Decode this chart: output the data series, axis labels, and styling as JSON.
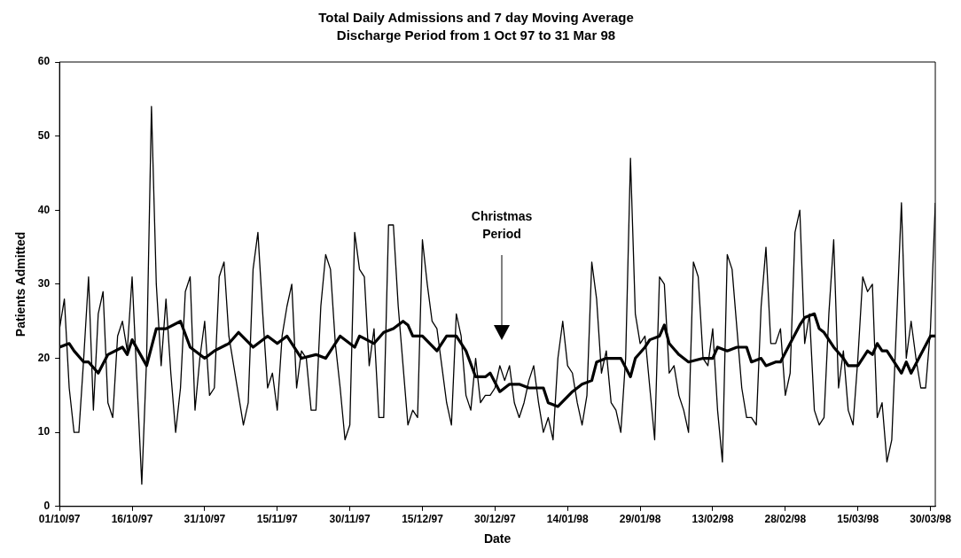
{
  "chart_data": {
    "type": "line",
    "title": "Total Daily Admissions and 7 day Moving Average",
    "subtitle": "Discharge Period from 1 Oct 97 to 31 Mar 98",
    "xlabel": "Date",
    "ylabel": "Patients Admitted",
    "x": [
      "1997-10-01",
      "1997-10-02",
      "1997-10-03",
      "1997-10-04",
      "1997-10-05",
      "1997-10-06",
      "1997-10-07",
      "1997-10-08",
      "1997-10-09",
      "1997-10-10",
      "1997-10-11",
      "1997-10-12",
      "1997-10-13",
      "1997-10-14",
      "1997-10-15",
      "1997-10-16",
      "1997-10-17",
      "1997-10-18",
      "1997-10-19",
      "1997-10-20",
      "1997-10-21",
      "1997-10-22",
      "1997-10-23",
      "1997-10-24",
      "1997-10-25",
      "1997-10-26",
      "1997-10-27",
      "1997-10-28",
      "1997-10-29",
      "1997-10-30",
      "1997-10-31",
      "1997-11-01",
      "1997-11-02",
      "1997-11-03",
      "1997-11-04",
      "1997-11-05",
      "1997-11-06",
      "1997-11-07",
      "1997-11-08",
      "1997-11-09",
      "1997-11-10",
      "1997-11-11",
      "1997-11-12",
      "1997-11-13",
      "1997-11-14",
      "1997-11-15",
      "1997-11-16",
      "1997-11-17",
      "1997-11-18",
      "1997-11-19",
      "1997-11-20",
      "1997-11-21",
      "1997-11-22",
      "1997-11-23",
      "1997-11-24",
      "1997-11-25",
      "1997-11-26",
      "1997-11-27",
      "1997-11-28",
      "1997-11-29",
      "1997-11-30",
      "1997-12-01",
      "1997-12-02",
      "1997-12-03",
      "1997-12-04",
      "1997-12-05",
      "1997-12-06",
      "1997-12-07",
      "1997-12-08",
      "1997-12-09",
      "1997-12-10",
      "1997-12-11",
      "1997-12-12",
      "1997-12-13",
      "1997-12-14",
      "1997-12-15",
      "1997-12-16",
      "1997-12-17",
      "1997-12-18",
      "1997-12-19",
      "1997-12-20",
      "1997-12-21",
      "1997-12-22",
      "1997-12-23",
      "1997-12-24",
      "1997-12-25",
      "1997-12-26",
      "1997-12-27",
      "1997-12-28",
      "1997-12-29",
      "1997-12-30",
      "1997-12-31",
      "1998-01-01",
      "1998-01-02",
      "1998-01-03",
      "1998-01-04",
      "1998-01-05",
      "1998-01-06",
      "1998-01-07",
      "1998-01-08",
      "1998-01-09",
      "1998-01-10",
      "1998-01-11",
      "1998-01-12",
      "1998-01-13",
      "1998-01-14",
      "1998-01-15",
      "1998-01-16",
      "1998-01-17",
      "1998-01-18",
      "1998-01-19",
      "1998-01-20",
      "1998-01-21",
      "1998-01-22",
      "1998-01-23",
      "1998-01-24",
      "1998-01-25",
      "1998-01-26",
      "1998-01-27",
      "1998-01-28",
      "1998-01-29",
      "1998-01-30",
      "1998-01-31",
      "1998-02-01",
      "1998-02-02",
      "1998-02-03",
      "1998-02-04",
      "1998-02-05",
      "1998-02-06",
      "1998-02-07",
      "1998-02-08",
      "1998-02-09",
      "1998-02-10",
      "1998-02-11",
      "1998-02-12",
      "1998-02-13",
      "1998-02-14",
      "1998-02-15",
      "1998-02-16",
      "1998-02-17",
      "1998-02-18",
      "1998-02-19",
      "1998-02-20",
      "1998-02-21",
      "1998-02-22",
      "1998-02-23",
      "1998-02-24",
      "1998-02-25",
      "1998-02-26",
      "1998-02-27",
      "1998-02-28",
      "1998-03-01",
      "1998-03-02",
      "1998-03-03",
      "1998-03-04",
      "1998-03-05",
      "1998-03-06",
      "1998-03-07",
      "1998-03-08",
      "1998-03-09",
      "1998-03-10",
      "1998-03-11",
      "1998-03-12",
      "1998-03-13",
      "1998-03-14",
      "1998-03-15",
      "1998-03-16",
      "1998-03-17",
      "1998-03-18",
      "1998-03-19",
      "1998-03-20",
      "1998-03-21",
      "1998-03-22",
      "1998-03-23",
      "1998-03-24",
      "1998-03-25",
      "1998-03-26",
      "1998-03-27",
      "1998-03-28",
      "1998-03-29",
      "1998-03-30",
      "1998-03-31"
    ],
    "series": [
      {
        "color": "#000000",
        "values": [
          24,
          28,
          16,
          10,
          10,
          20,
          31,
          13,
          26,
          29,
          14,
          12,
          23,
          25,
          21,
          31,
          17,
          3,
          20,
          54,
          30,
          19,
          28,
          18,
          10,
          16,
          29,
          31,
          13,
          20,
          25,
          15,
          16,
          31,
          33,
          23,
          19,
          15,
          11,
          14,
          32,
          37,
          26,
          16,
          18,
          13,
          23,
          27,
          30,
          16,
          21,
          20,
          13,
          13,
          27,
          34,
          32,
          22,
          16,
          9,
          11,
          37,
          32,
          31,
          19,
          24,
          12,
          12,
          38,
          38,
          27,
          19,
          11,
          13,
          12,
          36,
          30,
          25,
          24,
          19,
          14,
          11,
          26,
          23,
          15,
          13,
          20,
          14,
          15,
          15,
          16,
          19,
          17,
          19,
          14,
          12,
          14,
          17,
          19,
          14,
          10,
          12,
          9,
          20,
          25,
          19,
          18,
          14,
          11,
          15,
          33,
          28,
          18,
          21,
          14,
          13,
          10,
          20,
          47,
          26,
          22,
          23,
          16,
          9,
          31,
          30,
          18,
          19,
          15,
          13,
          10,
          33,
          31,
          20,
          19,
          24,
          13,
          6,
          34,
          32,
          24,
          16,
          12,
          12,
          11,
          27,
          35,
          22,
          22,
          24,
          15,
          18,
          37,
          40,
          22,
          26,
          13,
          11,
          12,
          26,
          36,
          16,
          21,
          13,
          11,
          20,
          31,
          29,
          30,
          12,
          14,
          6,
          9,
          25,
          41,
          20,
          25,
          20,
          16,
          16,
          24,
          41
        ]
      },
      {
        "color": "#000000",
        "x": [
          "1997-10-01",
          "1997-10-03",
          "1997-10-04",
          "1997-10-06",
          "1997-10-07",
          "1997-10-09",
          "1997-10-11",
          "1997-10-14",
          "1997-10-15",
          "1997-10-16",
          "1997-10-19",
          "1997-10-21",
          "1997-10-23",
          "1997-10-26",
          "1997-10-28",
          "1997-10-31",
          "1997-11-02",
          "1997-11-05",
          "1997-11-07",
          "1997-11-10",
          "1997-11-13",
          "1997-11-15",
          "1997-11-17",
          "1997-11-20",
          "1997-11-23",
          "1997-11-25",
          "1997-11-28",
          "1997-12-01",
          "1997-12-02",
          "1997-12-05",
          "1997-12-07",
          "1997-12-09",
          "1997-12-11",
          "1997-12-12",
          "1997-12-13",
          "1997-12-15",
          "1997-12-18",
          "1997-12-20",
          "1997-12-22",
          "1997-12-24",
          "1997-12-26",
          "1997-12-28",
          "1997-12-29",
          "1997-12-31",
          "1998-01-02",
          "1998-01-04",
          "1998-01-06",
          "1998-01-09",
          "1998-01-10",
          "1998-01-12",
          "1998-01-15",
          "1998-01-17",
          "1998-01-19",
          "1998-01-20",
          "1998-01-22",
          "1998-01-25",
          "1998-01-27",
          "1998-01-28",
          "1998-01-30",
          "1998-01-31",
          "1998-02-02",
          "1998-02-03",
          "1998-02-04",
          "1998-02-06",
          "1998-02-08",
          "1998-02-11",
          "1998-02-13",
          "1998-02-14",
          "1998-02-16",
          "1998-02-18",
          "1998-02-20",
          "1998-02-21",
          "1998-02-23",
          "1998-02-24",
          "1998-02-26",
          "1998-02-27",
          "1998-03-01",
          "1998-03-03",
          "1998-03-04",
          "1998-03-06",
          "1998-03-07",
          "1998-03-08",
          "1998-03-10",
          "1998-03-12",
          "1998-03-13",
          "1998-03-15",
          "1998-03-17",
          "1998-03-18",
          "1998-03-19",
          "1998-03-20",
          "1998-03-21",
          "1998-03-23",
          "1998-03-24",
          "1998-03-25",
          "1998-03-26",
          "1998-03-28",
          "1998-03-30",
          "1998-03-31"
        ],
        "values": [
          21.5,
          22,
          21,
          19.5,
          19.5,
          18,
          20.5,
          21.5,
          20.5,
          22.5,
          19,
          24,
          24,
          25,
          21.5,
          20,
          21,
          22,
          23.5,
          21.5,
          23,
          22,
          23,
          20,
          20.5,
          20,
          23,
          21.5,
          23,
          22,
          23.5,
          24,
          25,
          24.5,
          23,
          23,
          21,
          23,
          23,
          21,
          17.5,
          17.5,
          18,
          15.5,
          16.5,
          16.5,
          16,
          16,
          14,
          13.5,
          15.5,
          16.5,
          17,
          19.5,
          20,
          20,
          17.5,
          20,
          21.5,
          22.5,
          23,
          24.5,
          22,
          20.5,
          19.5,
          20,
          20,
          21.5,
          21,
          21.5,
          21.5,
          19.5,
          20,
          19,
          19.5,
          19.5,
          22,
          24.5,
          25.5,
          26,
          24,
          23.5,
          21.5,
          20,
          19,
          19,
          21,
          20.5,
          22,
          21,
          21,
          19,
          18,
          19.5,
          18,
          20.5,
          23,
          23
        ]
      }
    ],
    "xlim": [
      "1997-10-01",
      "1998-03-31"
    ],
    "xticks": [
      {
        "value": "1997-10-01",
        "label": "01/10/97"
      },
      {
        "value": "1997-10-16",
        "label": "16/10/97"
      },
      {
        "value": "1997-10-31",
        "label": "31/10/97"
      },
      {
        "value": "1997-11-15",
        "label": "15/11/97"
      },
      {
        "value": "1997-11-30",
        "label": "30/11/97"
      },
      {
        "value": "1997-12-15",
        "label": "15/12/97"
      },
      {
        "value": "1997-12-30",
        "label": "30/12/97"
      },
      {
        "value": "1998-01-14",
        "label": "14/01/98"
      },
      {
        "value": "1998-01-29",
        "label": "29/01/98"
      },
      {
        "value": "1998-02-13",
        "label": "13/02/98"
      },
      {
        "value": "1998-02-28",
        "label": "28/02/98"
      },
      {
        "value": "1998-03-15",
        "label": "15/03/98"
      },
      {
        "value": "1998-03-30",
        "label": "30/03/98"
      }
    ],
    "ylim": [
      0,
      60
    ],
    "yticks": [
      0,
      10,
      20,
      30,
      40,
      50,
      60
    ],
    "annotations": [
      "Christmas Period"
    ],
    "grid": false,
    "legend": false,
    "marker": "none",
    "line_style": "solid"
  }
}
